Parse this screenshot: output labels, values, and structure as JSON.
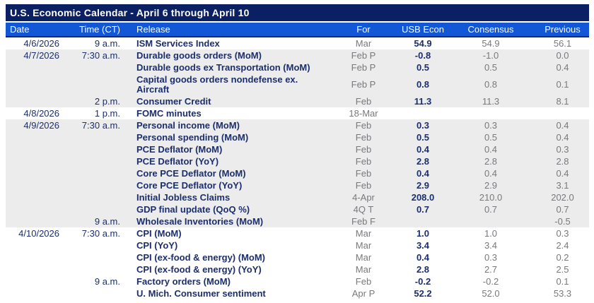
{
  "title": "U.S. Economic Calendar - April 6 through April 10",
  "colors": {
    "title_bar_bg": "#0b1f63",
    "header_bg": "#1157d6",
    "navy_text": "#1c2e6b",
    "gray_text": "#77797c",
    "stripe_bg": "#ececed"
  },
  "table": {
    "columns": [
      {
        "label": "Date"
      },
      {
        "label": "Time (CT)"
      },
      {
        "label": "Release"
      },
      {
        "label": "For"
      },
      {
        "label": "USB Econ"
      },
      {
        "label": "Consensus"
      },
      {
        "label": "Previous"
      }
    ],
    "rows": [
      {
        "date": "4/6/2026",
        "time": "9 a.m.",
        "release": "ISM Services Index",
        "for": "Mar",
        "usb_econ": "54.9",
        "consensus": "54.9",
        "previous": "56.1",
        "shaded": false,
        "wrap": false
      },
      {
        "date": "4/7/2026",
        "time": "7:30 a.m.",
        "release": "Durable goods orders (MoM)",
        "for": "Feb P",
        "usb_econ": "-0.8",
        "consensus": "-1.0",
        "previous": "0.0",
        "shaded": true,
        "wrap": false
      },
      {
        "date": "",
        "time": "",
        "release": "Durable goods ex Transportation (MoM)",
        "for": "Feb P",
        "usb_econ": "0.5",
        "consensus": "0.5",
        "previous": "0.4",
        "shaded": true,
        "wrap": false
      },
      {
        "date": "",
        "time": "",
        "release": "Capital goods orders nondefense ex. Aircraft",
        "for": "Feb P",
        "usb_econ": "0.8",
        "consensus": "0.8",
        "previous": "0.1",
        "shaded": true,
        "wrap": true
      },
      {
        "date": "",
        "time": "2 p.m.",
        "release": "Consumer Credit",
        "for": "Feb",
        "usb_econ": "11.3",
        "consensus": "11.3",
        "previous": "8.1",
        "shaded": true,
        "wrap": false
      },
      {
        "date": "4/8/2026",
        "time": "1 p.m.",
        "release": "FOMC minutes",
        "for": "18-Mar",
        "usb_econ": "",
        "consensus": "",
        "previous": "",
        "shaded": false,
        "wrap": false
      },
      {
        "date": "4/9/2026",
        "time": "7:30 a.m.",
        "release": "Personal income (MoM)",
        "for": "Feb",
        "usb_econ": "0.3",
        "consensus": "0.3",
        "previous": "0.4",
        "shaded": true,
        "wrap": false
      },
      {
        "date": "",
        "time": "",
        "release": "Personal spending (MoM)",
        "for": "Feb",
        "usb_econ": "0.5",
        "consensus": "0.5",
        "previous": "0.4",
        "shaded": true,
        "wrap": false
      },
      {
        "date": "",
        "time": "",
        "release": "PCE Deflator (MoM)",
        "for": "Feb",
        "usb_econ": "0.4",
        "consensus": "0.4",
        "previous": "0.3",
        "shaded": true,
        "wrap": false
      },
      {
        "date": "",
        "time": "",
        "release": "PCE Deflator (YoY)",
        "for": "Feb",
        "usb_econ": "2.8",
        "consensus": "2.8",
        "previous": "2.8",
        "shaded": true,
        "wrap": false
      },
      {
        "date": "",
        "time": "",
        "release": "Core PCE Deflator (MoM)",
        "for": "Feb",
        "usb_econ": "0.4",
        "consensus": "0.4",
        "previous": "0.4",
        "shaded": true,
        "wrap": false
      },
      {
        "date": "",
        "time": "",
        "release": "Core PCE Deflator (YoY)",
        "for": "Feb",
        "usb_econ": "2.9",
        "consensus": "2.9",
        "previous": "3.1",
        "shaded": true,
        "wrap": false
      },
      {
        "date": "",
        "time": "",
        "release": "Initial Jobless Claims",
        "for": "4-Apr",
        "usb_econ": "208.0",
        "consensus": "210.0",
        "previous": "202.0",
        "shaded": true,
        "wrap": false
      },
      {
        "date": "",
        "time": "",
        "release": "GDP final update (QoQ %)",
        "for": "4Q T",
        "usb_econ": "0.7",
        "consensus": "0.7",
        "previous": "0.7",
        "shaded": true,
        "wrap": false
      },
      {
        "date": "",
        "time": "9 a.m.",
        "release": "Wholesale Inventories (MoM)",
        "for": "Feb F",
        "usb_econ": "",
        "consensus": "",
        "previous": "-0.5",
        "shaded": true,
        "wrap": false
      },
      {
        "date": "4/10/2026",
        "time": "7:30 a.m.",
        "release": "CPI (MoM)",
        "for": "Mar",
        "usb_econ": "1.0",
        "consensus": "1.0",
        "previous": "0.3",
        "shaded": false,
        "wrap": false
      },
      {
        "date": "",
        "time": "",
        "release": "CPI (YoY)",
        "for": "Mar",
        "usb_econ": "3.4",
        "consensus": "3.4",
        "previous": "2.4",
        "shaded": false,
        "wrap": false
      },
      {
        "date": "",
        "time": "",
        "release": "CPI (ex-food & energy) (MoM)",
        "for": "Mar",
        "usb_econ": "0.4",
        "consensus": "0.3",
        "previous": "0.2",
        "shaded": false,
        "wrap": false
      },
      {
        "date": "",
        "time": "",
        "release": "CPI (ex-food & energy) (YoY)",
        "for": "Mar",
        "usb_econ": "2.8",
        "consensus": "2.7",
        "previous": "2.5",
        "shaded": false,
        "wrap": false
      },
      {
        "date": "",
        "time": "9 a.m.",
        "release": "Factory orders (MoM)",
        "for": "Feb",
        "usb_econ": "-0.2",
        "consensus": "-0.2",
        "previous": "0.1",
        "shaded": false,
        "wrap": false
      },
      {
        "date": "",
        "time": "",
        "release": "U. Mich. Consumer sentiment",
        "for": "Apr P",
        "usb_econ": "52.2",
        "consensus": "52.0",
        "previous": "53.3",
        "shaded": false,
        "wrap": false
      }
    ]
  }
}
